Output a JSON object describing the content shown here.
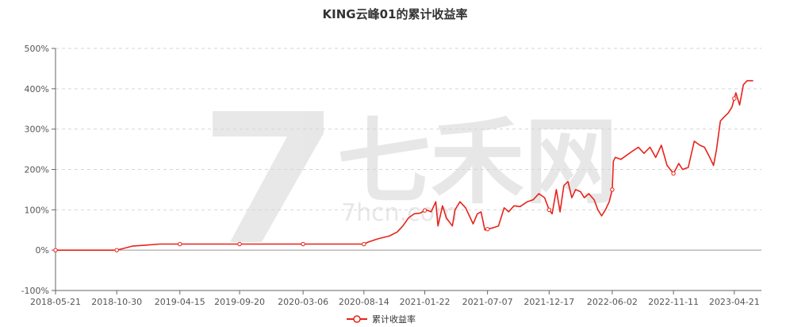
{
  "watermark": {
    "text": "七禾网",
    "subtext": "7hcn.com"
  },
  "chart_data": {
    "type": "line",
    "title": "KING云峰01的累计收益率",
    "xlabel": "",
    "ylabel": "",
    "x_ticks": [
      "2018-05-21",
      "2018-10-30",
      "2019-04-15",
      "2019-09-20",
      "2020-03-06",
      "2020-08-14",
      "2021-01-22",
      "2021-07-07",
      "2021-12-17",
      "2022-06-02",
      "2022-11-11",
      "2023-04-21"
    ],
    "y_ticks": [
      "500%",
      "400%",
      "300%",
      "200%",
      "100%",
      "0%",
      "-100%"
    ],
    "y_tick_values": [
      500,
      400,
      300,
      200,
      100,
      0,
      -100
    ],
    "ylim": [
      -100,
      500
    ],
    "grid": "horizontal dashed",
    "legend_position": "bottom-center",
    "series": [
      {
        "name": "累计收益率",
        "color": "#e8231a",
        "x": [
          "2018-05-21",
          "2018-10-30",
          "2018-11-20",
          "2018-12-10",
          "2019-01-10",
          "2019-02-20",
          "2019-03-20",
          "2019-04-15",
          "2019-09-20",
          "2020-03-06",
          "2020-08-14",
          "2020-08-25",
          "2020-09-20",
          "2020-10-20",
          "2020-11-10",
          "2020-11-25",
          "2020-12-10",
          "2020-12-25",
          "2021-01-10",
          "2021-01-25",
          "2021-02-08",
          "2021-02-20",
          "2021-02-26",
          "2021-03-10",
          "2021-03-20",
          "2021-04-05",
          "2021-04-12",
          "2021-04-25",
          "2021-05-10",
          "2021-05-20",
          "2021-05-30",
          "2021-06-10",
          "2021-06-20",
          "2021-06-30",
          "2021-07-07",
          "2021-07-20",
          "2021-08-05",
          "2021-08-20",
          "2021-09-01",
          "2021-09-15",
          "2021-10-01",
          "2021-10-20",
          "2021-11-05",
          "2021-11-20",
          "2021-12-05",
          "2021-12-17",
          "2021-12-25",
          "2022-01-05",
          "2022-01-15",
          "2022-01-25",
          "2022-02-05",
          "2022-02-15",
          "2022-02-25",
          "2022-03-10",
          "2022-03-20",
          "2022-04-01",
          "2022-04-15",
          "2022-04-25",
          "2022-05-05",
          "2022-05-15",
          "2022-05-25",
          "2022-06-02",
          "2022-06-05",
          "2022-06-10",
          "2022-06-25",
          "2022-07-10",
          "2022-07-25",
          "2022-08-10",
          "2022-08-25",
          "2022-09-10",
          "2022-09-25",
          "2022-10-10",
          "2022-10-25",
          "2022-11-11",
          "2022-11-25",
          "2022-12-05",
          "2022-12-20",
          "2023-01-05",
          "2023-01-20",
          "2023-02-01",
          "2023-02-15",
          "2023-02-25",
          "2023-03-05",
          "2023-03-15",
          "2023-03-25",
          "2023-04-05",
          "2023-04-15",
          "2023-04-25",
          "2023-05-05",
          "2023-05-15",
          "2023-05-25",
          "2023-06-10"
        ],
        "values": [
          0,
          0,
          5,
          10,
          12,
          15,
          15,
          15,
          15,
          15,
          15,
          20,
          28,
          35,
          45,
          60,
          80,
          90,
          92,
          100,
          95,
          120,
          60,
          110,
          80,
          60,
          100,
          120,
          105,
          85,
          65,
          90,
          95,
          50,
          52,
          55,
          60,
          105,
          95,
          110,
          108,
          120,
          125,
          140,
          130,
          100,
          90,
          150,
          95,
          160,
          170,
          130,
          150,
          145,
          130,
          140,
          125,
          100,
          85,
          100,
          120,
          150,
          220,
          230,
          225,
          235,
          245,
          255,
          240,
          255,
          230,
          260,
          210,
          190,
          215,
          200,
          205,
          270,
          260,
          255,
          230,
          210,
          250,
          320,
          330,
          340,
          355,
          390,
          360,
          410,
          420,
          420
        ]
      }
    ]
  }
}
